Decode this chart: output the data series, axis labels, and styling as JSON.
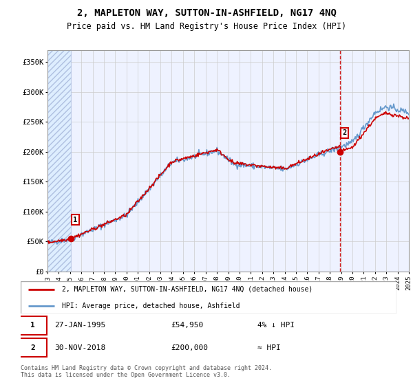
{
  "title": "2, MAPLETON WAY, SUTTON-IN-ASHFIELD, NG17 4NQ",
  "subtitle": "Price paid vs. HM Land Registry's House Price Index (HPI)",
  "legend_line1": "2, MAPLETON WAY, SUTTON-IN-ASHFIELD, NG17 4NQ (detached house)",
  "legend_line2": "HPI: Average price, detached house, Ashfield",
  "annotation_text": "Contains HM Land Registry data © Crown copyright and database right 2024.\nThis data is licensed under the Open Government Licence v3.0.",
  "table_rows": [
    {
      "num": "1",
      "date": "27-JAN-1995",
      "price": "£54,950",
      "note": "4% ↓ HPI"
    },
    {
      "num": "2",
      "date": "30-NOV-2018",
      "price": "£200,000",
      "note": "≈ HPI"
    }
  ],
  "sale1_year": 1995.07,
  "sale1_price": 54950,
  "sale2_year": 2018.92,
  "sale2_price": 200000,
  "hpi_color": "#6699cc",
  "price_color": "#cc0000",
  "marker_color": "#cc0000",
  "hatched_color": "#ddeeff",
  "hatch_pattern": "////",
  "dashed_vline_color": "#cc0000",
  "grid_color": "#cccccc",
  "background_color": "#eef2ff",
  "ylim": [
    0,
    370000
  ],
  "xlim_start": 1993,
  "xlim_end": 2025,
  "yticks": [
    0,
    50000,
    100000,
    150000,
    200000,
    250000,
    300000,
    350000
  ],
  "ytick_labels": [
    "£0",
    "£50K",
    "£100K",
    "£150K",
    "£200K",
    "£250K",
    "£300K",
    "£350K"
  ],
  "xticks": [
    1993,
    1994,
    1995,
    1996,
    1997,
    1998,
    1999,
    2000,
    2001,
    2002,
    2003,
    2004,
    2005,
    2006,
    2007,
    2008,
    2009,
    2010,
    2011,
    2012,
    2013,
    2014,
    2015,
    2016,
    2017,
    2018,
    2019,
    2020,
    2021,
    2022,
    2023,
    2024,
    2025
  ]
}
